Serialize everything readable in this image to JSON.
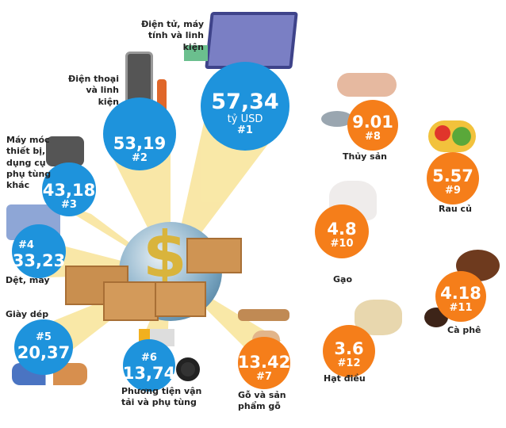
{
  "unit": "tỷ USD",
  "colors": {
    "blue": "#1e93dc",
    "orange": "#f57e1a",
    "beam": "#f7dc6f"
  },
  "items": [
    {
      "label": "Điện tử, máy tính và linh kiện",
      "value": "57,34",
      "rank": "#1",
      "icon": "laptop-icon"
    },
    {
      "label": "Điện thoại và linh kiện",
      "value": "53,19",
      "rank": "#2",
      "icon": "smartphone-icon"
    },
    {
      "label": "Máy móc thiết bị, dụng cụ phụ tùng khác",
      "value": "43,18",
      "rank": "#3",
      "icon": "engine-icon"
    },
    {
      "label": "Dệt, may",
      "value": "33,23",
      "rank": "#4",
      "icon": "shirt-icon"
    },
    {
      "label": "Giày dép",
      "value": "20,37",
      "rank": "#5",
      "icon": "shoes-icon"
    },
    {
      "label": "Phương tiện vận tải và phụ tùng",
      "value": "13,74",
      "rank": "#6",
      "icon": "truck-icon"
    },
    {
      "label": "Gỗ và sản phẩm gỗ",
      "value": "13.42",
      "rank": "#7",
      "icon": "wood-icon"
    },
    {
      "label": "Thủy sản",
      "value": "9.01",
      "rank": "#8",
      "icon": "seafood-icon"
    },
    {
      "label": "Rau củ",
      "value": "5.57",
      "rank": "#9",
      "icon": "vegetables-icon"
    },
    {
      "label": "Gạo",
      "value": "4.8",
      "rank": "#10",
      "icon": "rice-icon"
    },
    {
      "label": "Cà phê",
      "value": "4.18",
      "rank": "#11",
      "icon": "coffee-icon"
    },
    {
      "label": "Hạt điều",
      "value": "3.6",
      "rank": "#12",
      "icon": "cashew-icon"
    }
  ]
}
